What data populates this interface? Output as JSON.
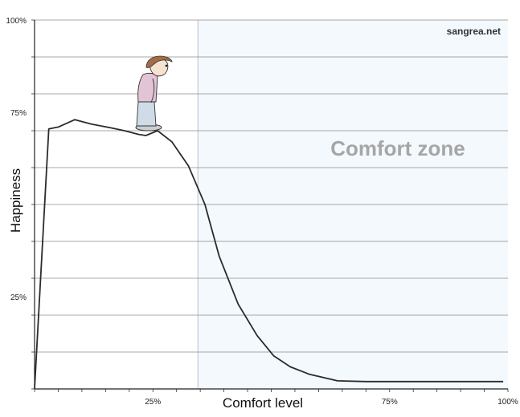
{
  "chart_data": {
    "type": "line",
    "title": "",
    "xlabel": "Comfort level",
    "ylabel": "Happiness",
    "watermark": "sangrea.net",
    "xlim": [
      0,
      100
    ],
    "ylim": [
      0,
      100
    ],
    "x_tick_labels": [
      {
        "value": 25,
        "label": "25%"
      },
      {
        "value": 75,
        "label": "75%"
      },
      {
        "value": 100,
        "label": "100%"
      }
    ],
    "y_tick_labels": [
      {
        "value": 25,
        "label": "25%"
      },
      {
        "value": 75,
        "label": "75%"
      },
      {
        "value": 100,
        "label": "100%"
      }
    ],
    "gridlines_y": [
      10,
      20,
      30,
      40,
      50,
      60,
      70,
      80,
      90,
      100
    ],
    "grid": true,
    "shaded_region": {
      "label": "Comfort zone",
      "x_start": 34.5,
      "x_end": 100,
      "color": "#f3f9fc"
    },
    "line_color": "#2b2b2b",
    "series": [
      {
        "x": [
          0,
          3,
          5,
          8.5,
          12,
          16,
          19,
          22,
          23.5,
          26,
          29,
          32.5,
          36,
          39,
          43,
          47,
          50.5,
          54,
          58,
          64,
          70,
          76,
          82,
          88,
          93,
          99
        ],
        "y": [
          0,
          70.5,
          71,
          73,
          71.8,
          70.8,
          70,
          69,
          68.7,
          70,
          67,
          60.5,
          50,
          36,
          23,
          14.5,
          9,
          6,
          4,
          2.2,
          2,
          2,
          2,
          2,
          2,
          2
        ]
      }
    ],
    "figure": {
      "description_icon": "person-on-cliff-edge-icon",
      "x": 25,
      "y": 70
    }
  }
}
